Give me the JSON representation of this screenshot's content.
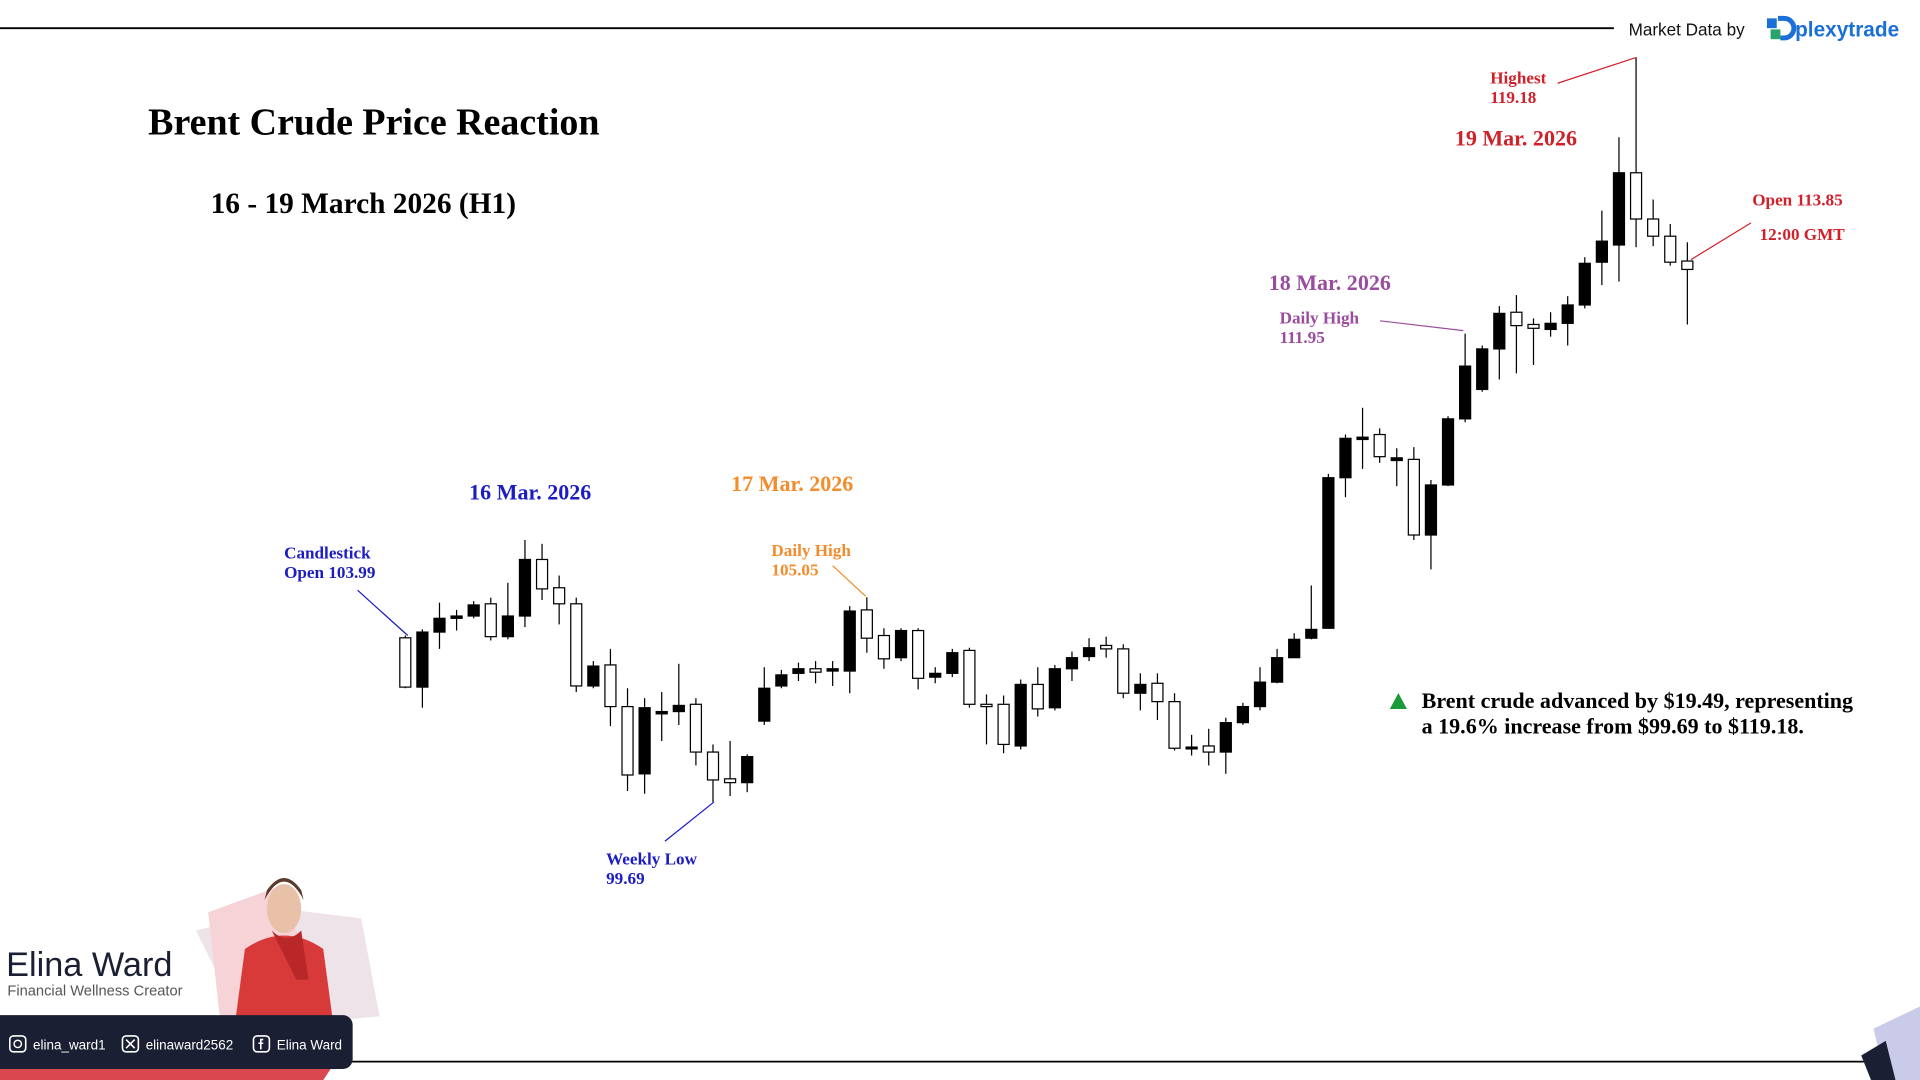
{
  "chart_data": {
    "type": "candlestick",
    "title": "Brent Crude Price Reaction",
    "subtitle": "16 - 19 March 2026 (H1)",
    "up_color": "#000000",
    "down_color": "#ffffff",
    "edge_color": "#000000",
    "ylim": [
      98.25,
      119.72
    ],
    "open": [
      103.99,
      102.7,
      104.14,
      104.5,
      104.56,
      104.88,
      104.02,
      104.56,
      106.04,
      105.3,
      104.88,
      102.73,
      103.28,
      102.19,
      100.43,
      102.0,
      102.06,
      102.25,
      101.0,
      100.3,
      100.2,
      101.81,
      102.73,
      103.06,
      103.18,
      103.12,
      103.12,
      104.72,
      104.05,
      103.47,
      104.18,
      102.96,
      103.06,
      103.66,
      102.25,
      102.25,
      101.16,
      102.77,
      102.16,
      103.18,
      103.5,
      103.79,
      103.7,
      102.54,
      102.8,
      102.32,
      101.1,
      101.16,
      101.0,
      101.77,
      102.19,
      102.83,
      103.47,
      103.98,
      104.24,
      108.18,
      109.18,
      109.31,
      108.63,
      108.66,
      106.68,
      107.99,
      109.72,
      110.49,
      111.55,
      112.51,
      112.19,
      112.06,
      112.22,
      112.7,
      113.82,
      114.27,
      116.16,
      114.95,
      114.5,
      113.85
    ],
    "high": [
      104.05,
      104.21,
      104.91,
      104.72,
      104.95,
      105.04,
      105.43,
      106.55,
      106.45,
      105.62,
      105.04,
      103.38,
      103.7,
      102.67,
      102.41,
      102.57,
      103.31,
      102.41,
      101.2,
      101.29,
      100.94,
      103.22,
      103.15,
      103.34,
      103.38,
      103.38,
      104.82,
      105.05,
      104.24,
      104.24,
      104.24,
      103.22,
      103.7,
      103.73,
      102.51,
      102.48,
      102.9,
      103.22,
      103.28,
      103.63,
      103.98,
      104.02,
      103.82,
      103.06,
      103.06,
      102.54,
      101.45,
      101.61,
      101.9,
      102.29,
      103.22,
      103.7,
      104.11,
      105.36,
      108.28,
      109.31,
      110.01,
      109.47,
      108.95,
      108.98,
      108.12,
      109.79,
      111.95,
      111.64,
      112.67,
      112.96,
      112.35,
      112.51,
      112.93,
      113.95,
      115.17,
      117.09,
      119.18,
      115.46,
      114.82,
      114.34
    ],
    "low": [
      102.67,
      102.16,
      103.7,
      104.18,
      104.5,
      103.92,
      103.95,
      104.27,
      104.98,
      104.34,
      102.57,
      102.67,
      101.68,
      99.98,
      99.91,
      101.29,
      101.71,
      100.65,
      99.69,
      99.85,
      99.95,
      101.71,
      102.67,
      102.86,
      102.8,
      102.73,
      102.54,
      103.6,
      103.18,
      103.38,
      102.64,
      102.8,
      102.96,
      102.16,
      101.2,
      100.97,
      101.07,
      101.93,
      102.09,
      102.86,
      103.38,
      103.47,
      102.41,
      102.09,
      101.84,
      101.04,
      100.91,
      100.65,
      100.43,
      101.71,
      102.09,
      102.8,
      103.47,
      103.95,
      104.24,
      107.67,
      108.41,
      108.57,
      107.96,
      106.55,
      105.78,
      107.96,
      109.63,
      110.43,
      110.75,
      110.91,
      111.13,
      111.87,
      111.64,
      112.61,
      113.22,
      113.31,
      114.21,
      114.24,
      113.73,
      112.19
    ],
    "close": [
      102.7,
      104.14,
      104.5,
      104.56,
      104.85,
      104.02,
      104.56,
      106.04,
      105.27,
      104.88,
      102.73,
      103.25,
      102.19,
      100.4,
      102.16,
      102.06,
      102.22,
      101.0,
      100.27,
      100.2,
      100.88,
      102.67,
      103.02,
      103.18,
      103.09,
      103.18,
      104.69,
      103.98,
      103.44,
      104.18,
      102.93,
      103.06,
      103.6,
      102.25,
      102.19,
      101.2,
      102.77,
      102.13,
      103.18,
      103.47,
      103.73,
      103.7,
      102.54,
      102.77,
      102.32,
      101.1,
      101.13,
      101.0,
      101.77,
      102.19,
      102.83,
      103.47,
      103.95,
      104.21,
      108.18,
      109.21,
      109.24,
      108.73,
      108.7,
      106.68,
      107.99,
      109.72,
      111.1,
      111.55,
      112.48,
      112.16,
      112.09,
      112.22,
      112.7,
      113.79,
      114.37,
      116.16,
      114.95,
      114.5,
      113.82,
      113.63
    ],
    "annotations": [
      {
        "lines": [
          "16 Mar. 2026"
        ],
        "color": "#1c1cc4"
      },
      {
        "lines": [
          "17 Mar. 2026"
        ],
        "color": "#f28c2c"
      },
      {
        "lines": [
          "18 Mar. 2026"
        ],
        "color": "#9a4c9e"
      },
      {
        "lines": [
          "19 Mar. 2026"
        ],
        "color": "#d0202a"
      },
      {
        "lines": [
          "Candlestick",
          "Open 103.99"
        ],
        "color": "#1c1cc4"
      },
      {
        "lines": [
          "Weekly Low",
          "99.69"
        ],
        "color": "#1c1cc4"
      },
      {
        "lines": [
          "Daily High",
          "105.05"
        ],
        "color": "#f28c2c"
      },
      {
        "lines": [
          "Daily High",
          "111.95"
        ],
        "color": "#9a4c9e"
      },
      {
        "lines": [
          "Highest",
          "119.18"
        ],
        "color": "#d0202a"
      },
      {
        "lines": [
          "Open 113.85"
        ],
        "color": "#d0202a"
      },
      {
        "lines": [
          "12:00 GMT"
        ],
        "color": "#d0202a"
      }
    ],
    "note": {
      "lines": [
        "Brent crude advanced by $19.49, representing",
        "a 19.6% increase from $99.69 to $119.18."
      ],
      "color": "#1a9a3a"
    }
  },
  "source": {
    "label": "Market Data by",
    "brand": "plexytrade"
  },
  "creator": {
    "name": "Elina Ward",
    "tagline": "Financial Wellness Creator",
    "handles": [
      "elina_ward1",
      "elinaward2562",
      "Elina Ward"
    ]
  }
}
